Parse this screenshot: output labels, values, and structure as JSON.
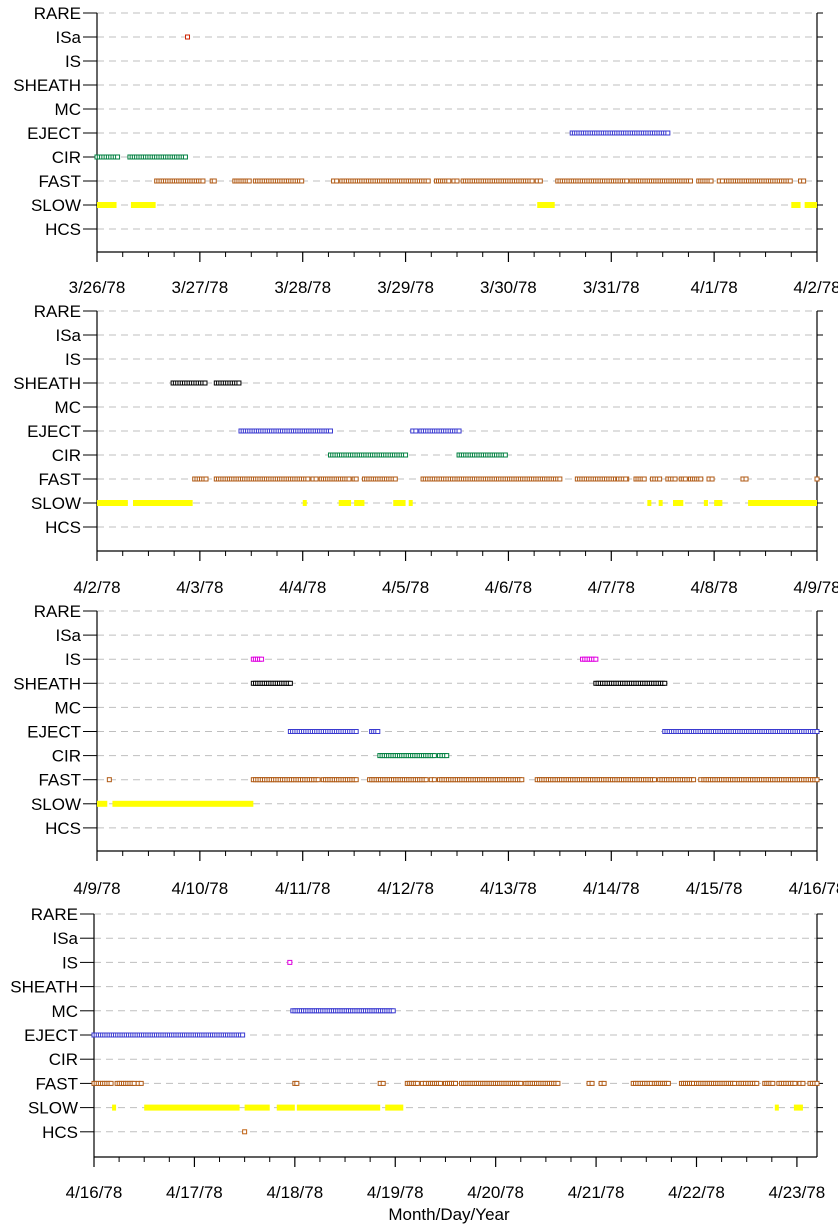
{
  "chart_data": {
    "type": "scatter",
    "xlabel": "Month/Day/Year",
    "categories": [
      "RARE",
      "ISa",
      "IS",
      "SHEATH",
      "MC",
      "EJECT",
      "CIR",
      "FAST",
      "SLOW",
      "HCS"
    ],
    "colors": {
      "RARE": "#000000",
      "ISa": "#cc2200",
      "IS": "#e000e0",
      "SHEATH": "#000000",
      "MC": "#3a3ad0",
      "EJECT": "#3a3ad0",
      "CIR": "#008040",
      "FAST": "#b05a14",
      "SLOW": "#ffff00",
      "HCS": "#c06010"
    },
    "grid": "dashed horizontal",
    "panels": [
      {
        "ticks": [
          "3/26/78",
          "3/27/78",
          "3/28/78",
          "3/29/78",
          "3/30/78",
          "3/31/78",
          "4/1/78",
          "4/2/78"
        ],
        "xlim": [
          0,
          7
        ],
        "series": {
          "ISa": [
            [
              0.88,
              0.88
            ]
          ],
          "EJECT": [
            [
              4.62,
              5.55
            ]
          ],
          "CIR": [
            [
              0.0,
              0.2
            ],
            [
              0.32,
              0.86
            ]
          ],
          "FAST": [
            [
              0.58,
              1.03
            ],
            [
              1.12,
              1.14
            ],
            [
              1.34,
              1.48
            ],
            [
              1.54,
              1.99
            ],
            [
              2.3,
              2.33
            ],
            [
              2.38,
              3.22
            ],
            [
              3.3,
              3.42
            ],
            [
              3.47,
              3.5
            ],
            [
              3.56,
              4.23
            ],
            [
              4.28,
              4.31
            ],
            [
              4.48,
              5.15
            ],
            [
              5.2,
              5.77
            ],
            [
              5.85,
              5.97
            ],
            [
              6.05,
              6.08
            ],
            [
              6.12,
              6.74
            ],
            [
              6.84,
              6.87
            ]
          ],
          "SLOW": [
            [
              0.0,
              0.19
            ],
            [
              0.33,
              0.57
            ],
            [
              4.28,
              4.45
            ],
            [
              6.75,
              6.84
            ],
            [
              6.88,
              7.0
            ]
          ]
        }
      },
      {
        "ticks": [
          "4/2/78",
          "4/3/78",
          "4/4/78",
          "4/5/78",
          "4/6/78",
          "4/7/78",
          "4/8/78",
          "4/9/78"
        ],
        "xlim": [
          0,
          7
        ],
        "series": {
          "SHEATH": [
            [
              0.74,
              1.05
            ],
            [
              1.16,
              1.38
            ]
          ],
          "EJECT": [
            [
              1.4,
              2.27
            ],
            [
              3.07,
              3.1
            ],
            [
              3.15,
              3.52
            ]
          ],
          "CIR": [
            [
              2.27,
              3.0
            ],
            [
              3.52,
              3.97
            ]
          ],
          "FAST": [
            [
              0.95,
              1.06
            ],
            [
              1.16,
              2.05
            ],
            [
              2.1,
              2.13
            ],
            [
              2.18,
              2.45
            ],
            [
              2.5,
              2.52
            ],
            [
              2.6,
              2.9
            ],
            [
              3.17,
              3.5
            ],
            [
              3.52,
              4.5
            ],
            [
              4.67,
              5.15
            ],
            [
              5.07,
              5.14
            ],
            [
              5.24,
              5.32
            ],
            [
              5.4,
              5.47
            ],
            [
              5.55,
              5.62
            ],
            [
              5.68,
              5.72
            ],
            [
              5.77,
              5.87
            ],
            [
              5.95,
              5.98
            ],
            [
              6.28,
              6.31
            ],
            [
              7.0,
              7.0
            ]
          ],
          "SLOW": [
            [
              0.0,
              0.3
            ],
            [
              0.35,
              0.93
            ],
            [
              2.02,
              2.05
            ],
            [
              2.35,
              2.47
            ],
            [
              2.5,
              2.6
            ],
            [
              2.88,
              3.0
            ],
            [
              3.05,
              3.08
            ],
            [
              5.37,
              5.4
            ],
            [
              5.48,
              5.51
            ],
            [
              5.6,
              5.7
            ],
            [
              5.9,
              5.94
            ],
            [
              6.0,
              6.08
            ],
            [
              6.33,
              7.0
            ]
          ]
        }
      },
      {
        "ticks": [
          "4/9/78",
          "4/10/78",
          "4/11/78",
          "4/12/78",
          "4/13/78",
          "4/14/78",
          "4/15/78",
          "4/16/78"
        ],
        "xlim": [
          0,
          7
        ],
        "series": {
          "IS": [
            [
              1.52,
              1.6
            ],
            [
              4.72,
              4.85
            ]
          ],
          "SHEATH": [
            [
              1.52,
              1.88
            ],
            [
              4.85,
              5.52
            ]
          ],
          "EJECT": [
            [
              1.88,
              2.52
            ],
            [
              2.67,
              2.73
            ],
            [
              5.52,
              7.0
            ]
          ],
          "CIR": [
            [
              2.75,
              3.28
            ],
            [
              3.33,
              3.4
            ]
          ],
          "FAST": [
            [
              0.12,
              0.13
            ],
            [
              1.52,
              2.15
            ],
            [
              2.2,
              2.52
            ],
            [
              2.65,
              3.2
            ],
            [
              3.25,
              3.28
            ],
            [
              3.33,
              4.13
            ],
            [
              4.28,
              5.42
            ],
            [
              5.47,
              5.8
            ],
            [
              5.87,
              5.9
            ],
            [
              5.92,
              7.0
            ]
          ],
          "SLOW": [
            [
              0.0,
              0.1
            ],
            [
              0.15,
              1.52
            ]
          ]
        }
      },
      {
        "ticks": [
          "4/16/78",
          "4/17/78",
          "4/18/78",
          "4/19/78",
          "4/20/78",
          "4/21/78",
          "4/22/78",
          "4/23/78"
        ],
        "xlim": [
          0,
          7.2
        ],
        "series": {
          "IS": [
            [
              1.95,
              1.95
            ]
          ],
          "MC": [
            [
              1.98,
              2.98
            ]
          ],
          "EJECT": [
            [
              0.0,
              1.48
            ]
          ],
          "FAST": [
            [
              0.0,
              0.17
            ],
            [
              0.23,
              0.4
            ],
            [
              0.44,
              0.47
            ],
            [
              2.0,
              2.02
            ],
            [
              2.85,
              2.88
            ],
            [
              3.12,
              3.22
            ],
            [
              3.27,
              3.3
            ],
            [
              3.33,
              3.45
            ],
            [
              3.5,
              3.6
            ],
            [
              3.66,
              4.25
            ],
            [
              4.3,
              4.62
            ],
            [
              4.93,
              4.96
            ],
            [
              5.05,
              5.08
            ],
            [
              5.37,
              5.55
            ],
            [
              5.58,
              5.72
            ],
            [
              5.85,
              5.97
            ],
            [
              6.0,
              6.38
            ],
            [
              6.42,
              6.6
            ],
            [
              6.68,
              6.76
            ],
            [
              6.82,
              6.98
            ],
            [
              7.03,
              7.06
            ],
            [
              7.13,
              7.2
            ]
          ],
          "SLOW": [
            [
              0.2,
              0.23
            ],
            [
              0.5,
              1.45
            ],
            [
              1.5,
              1.75
            ],
            [
              1.82,
              2.0
            ],
            [
              2.02,
              2.85
            ],
            [
              2.9,
              3.08
            ],
            [
              6.8,
              6.83
            ],
            [
              6.97,
              7.06
            ]
          ],
          "HCS": [
            [
              1.5,
              1.5
            ]
          ]
        }
      }
    ]
  }
}
